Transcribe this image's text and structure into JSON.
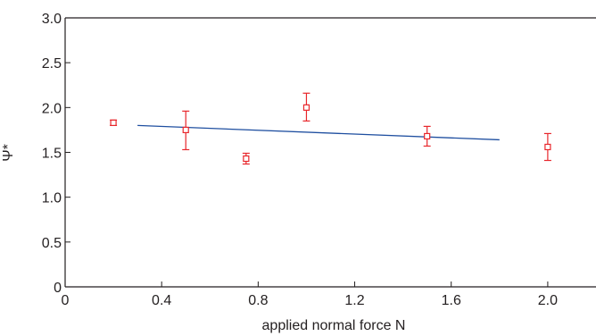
{
  "chart_data": {
    "type": "scatter",
    "title": "",
    "xlabel": "applied normal force N",
    "ylabel": "Ψ*",
    "xlim": [
      0,
      2.2
    ],
    "ylim": [
      0,
      3.0
    ],
    "x_ticks": [
      0,
      0.4,
      0.8,
      1.2,
      1.6,
      2.0
    ],
    "x_tick_labels": [
      "0",
      "0.4",
      "0.8",
      "1.2",
      "1.6",
      "2.0"
    ],
    "y_ticks": [
      0,
      0.5,
      1.0,
      1.5,
      2.0,
      2.5,
      3.0
    ],
    "y_tick_labels": [
      "0",
      "0.5",
      "1.0",
      "1.5",
      "2.0",
      "2.5",
      "3.0"
    ],
    "grid": false,
    "legend": "none",
    "series": [
      {
        "kind": "points-with-error-bars",
        "color": "#e8262b",
        "marker": "open-square",
        "points": [
          {
            "x": 0.2,
            "y": 1.83,
            "err_low": 0.03,
            "err_high": 0.03
          },
          {
            "x": 0.5,
            "y": 1.75,
            "err_low": 0.22,
            "err_high": 0.21
          },
          {
            "x": 0.75,
            "y": 1.43,
            "err_low": 0.06,
            "err_high": 0.06
          },
          {
            "x": 1.0,
            "y": 2.0,
            "err_low": 0.15,
            "err_high": 0.16
          },
          {
            "x": 1.5,
            "y": 1.68,
            "err_low": 0.11,
            "err_high": 0.11
          },
          {
            "x": 2.0,
            "y": 1.56,
            "err_low": 0.15,
            "err_high": 0.15
          }
        ]
      },
      {
        "kind": "fit-line",
        "color": "#1f4fa0",
        "x": [
          0.3,
          1.8
        ],
        "y": [
          1.8,
          1.64
        ]
      }
    ]
  }
}
